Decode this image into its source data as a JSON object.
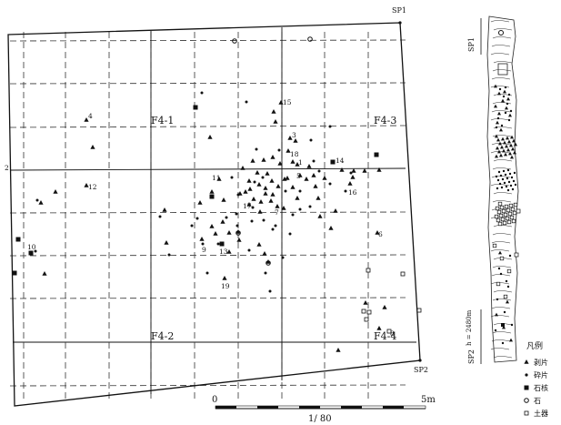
{
  "labels": {
    "sp1": "SP1",
    "sp2": "SP2",
    "f41": "F4-1",
    "f42": "F4-2",
    "f43": "F4-3",
    "f44": "F4-4",
    "scale_zero": "0",
    "scale_end": "5m",
    "scale_ratio": "1/ 80",
    "section_sp1": "SP1",
    "section_sp2": "SP2",
    "section_h": "h = 2480m"
  },
  "legend": {
    "title": "凡例",
    "items": [
      {
        "symbol": "triangle",
        "label": "剥片"
      },
      {
        "symbol": "dot",
        "label": "砕片"
      },
      {
        "symbol": "square",
        "label": "石核"
      },
      {
        "symbol": "circle",
        "label": "石"
      },
      {
        "symbol": "open-square",
        "label": "土器"
      }
    ]
  },
  "numbered_points": [
    {
      "label": "1",
      "sym": "triangle"
    },
    {
      "label": "2",
      "sym": "triangle"
    },
    {
      "label": "3",
      "sym": "triangle"
    },
    {
      "label": "4",
      "sym": "triangle"
    },
    {
      "label": "5",
      "sym": "dot"
    },
    {
      "label": "6",
      "sym": "triangle"
    },
    {
      "label": "7",
      "sym": "triangle"
    },
    {
      "label": "8",
      "sym": "dot"
    },
    {
      "label": "9",
      "sym": "triangle"
    },
    {
      "label": "10",
      "sym": "square"
    },
    {
      "label": "11",
      "sym": "triangle"
    },
    {
      "label": "12",
      "sym": "triangle"
    },
    {
      "label": "13",
      "sym": "square"
    },
    {
      "label": "14",
      "sym": "square"
    },
    {
      "label": "15",
      "sym": "triangle"
    },
    {
      "label": "16",
      "sym": "triangle"
    },
    {
      "label": "17",
      "sym": "triangle"
    },
    {
      "label": "18",
      "sym": "triangle"
    },
    {
      "label": "19",
      "sym": "triangle"
    }
  ]
}
